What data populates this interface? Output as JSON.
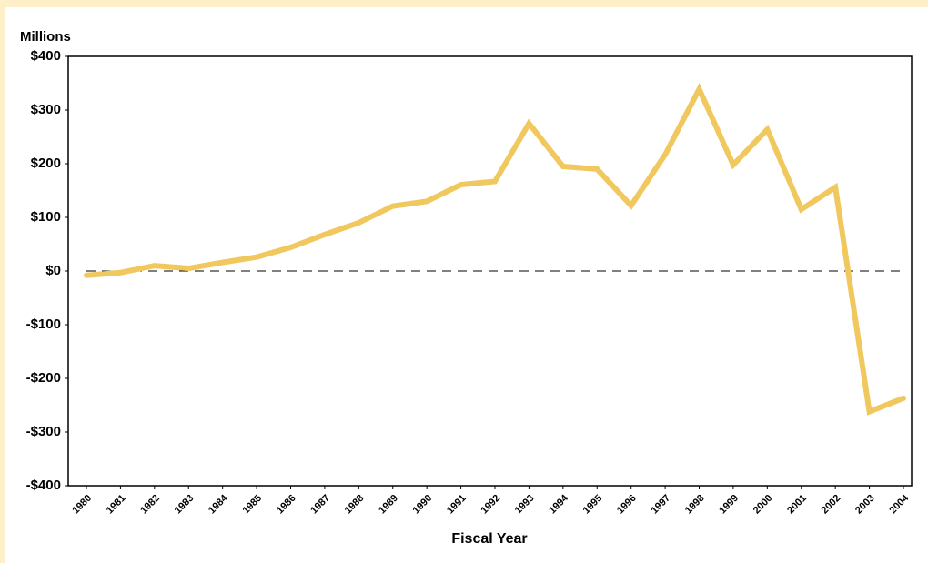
{
  "chart_data": {
    "type": "line",
    "y_axis_label": "Millions",
    "x_axis_label": "Fiscal Year",
    "categories": [
      "1980",
      "1981",
      "1982",
      "1983",
      "1984",
      "1985",
      "1986",
      "1987",
      "1988",
      "1989",
      "1990",
      "1991",
      "1992",
      "1993",
      "1994",
      "1995",
      "1996",
      "1997",
      "1998",
      "1999",
      "2000",
      "2001",
      "2002",
      "2003",
      "2004"
    ],
    "series": [
      {
        "color": "#f0c85e",
        "values": [
          -8,
          -3,
          10,
          5,
          16,
          26,
          44,
          68,
          90,
          121,
          130,
          161,
          167,
          275,
          195,
          190,
          122,
          217,
          339,
          198,
          264,
          115,
          156,
          -262,
          -237
        ]
      }
    ],
    "ylim": [
      -400,
      400
    ],
    "yticks": [
      {
        "value": 400,
        "label": "$400"
      },
      {
        "value": 300,
        "label": "$300"
      },
      {
        "value": 200,
        "label": "$200"
      },
      {
        "value": 100,
        "label": "$100"
      },
      {
        "value": 0,
        "label": "$0"
      },
      {
        "value": -100,
        "label": "-$100"
      },
      {
        "value": -200,
        "label": "-$200"
      },
      {
        "value": -300,
        "label": "-$300"
      },
      {
        "value": -400,
        "label": "-$400"
      }
    ],
    "reference_line": 0
  }
}
